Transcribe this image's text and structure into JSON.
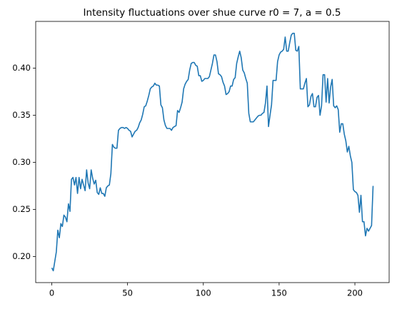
{
  "chart_data": {
    "type": "line",
    "title": "Intensity fluctuations over shue curve r0 = 7, a = 0.5",
    "color": "#1f77b4",
    "x": [
      0,
      1,
      2,
      3,
      4,
      5,
      6,
      7,
      8,
      9,
      10,
      11,
      12,
      13,
      14,
      15,
      16,
      17,
      18,
      19,
      20,
      21,
      22,
      23,
      24,
      25,
      26,
      27,
      28,
      29,
      30,
      31,
      32,
      33,
      34,
      35,
      36,
      37,
      38,
      39,
      40,
      41,
      42,
      43,
      44,
      45,
      46,
      47,
      48,
      49,
      50,
      51,
      52,
      53,
      54,
      55,
      56,
      57,
      58,
      59,
      60,
      61,
      62,
      63,
      64,
      65,
      66,
      67,
      68,
      69,
      70,
      71,
      72,
      73,
      74,
      75,
      76,
      77,
      78,
      79,
      80,
      81,
      82,
      83,
      84,
      85,
      86,
      87,
      88,
      89,
      90,
      91,
      92,
      93,
      94,
      95,
      96,
      97,
      98,
      99,
      100,
      101,
      102,
      103,
      104,
      105,
      106,
      107,
      108,
      109,
      110,
      111,
      112,
      113,
      114,
      115,
      116,
      117,
      118,
      119,
      120,
      121,
      122,
      123,
      124,
      125,
      126,
      127,
      128,
      129,
      130,
      131,
      132,
      133,
      134,
      135,
      136,
      137,
      138,
      139,
      140,
      141,
      142,
      143,
      144,
      145,
      146,
      147,
      148,
      149,
      150,
      151,
      152,
      153,
      154,
      155,
      156,
      157,
      158,
      159,
      160,
      161,
      162,
      163,
      164,
      165,
      166,
      167,
      168,
      169,
      170,
      171,
      172,
      173,
      174,
      175,
      176,
      177,
      178,
      179,
      180,
      181,
      182,
      183,
      184,
      185,
      186,
      187,
      188,
      189,
      190,
      191,
      192,
      193,
      194,
      195,
      196,
      197,
      198,
      199,
      200,
      201,
      202,
      203,
      204,
      205,
      206,
      207,
      208,
      209,
      210,
      211,
      212
    ],
    "values": [
      0.188,
      0.185,
      0.195,
      0.205,
      0.228,
      0.22,
      0.235,
      0.232,
      0.244,
      0.242,
      0.237,
      0.256,
      0.248,
      0.282,
      0.284,
      0.276,
      0.284,
      0.267,
      0.284,
      0.272,
      0.282,
      0.276,
      0.27,
      0.292,
      0.278,
      0.272,
      0.292,
      0.283,
      0.277,
      0.281,
      0.268,
      0.266,
      0.273,
      0.267,
      0.267,
      0.264,
      0.273,
      0.275,
      0.276,
      0.288,
      0.319,
      0.316,
      0.315,
      0.315,
      0.334,
      0.336,
      0.337,
      0.337,
      0.336,
      0.337,
      0.336,
      0.334,
      0.333,
      0.327,
      0.33,
      0.333,
      0.334,
      0.337,
      0.342,
      0.345,
      0.351,
      0.359,
      0.36,
      0.365,
      0.371,
      0.378,
      0.38,
      0.381,
      0.384,
      0.382,
      0.382,
      0.381,
      0.361,
      0.358,
      0.345,
      0.339,
      0.336,
      0.336,
      0.336,
      0.334,
      0.337,
      0.338,
      0.339,
      0.355,
      0.353,
      0.358,
      0.364,
      0.378,
      0.383,
      0.386,
      0.388,
      0.398,
      0.405,
      0.406,
      0.406,
      0.403,
      0.402,
      0.392,
      0.392,
      0.386,
      0.387,
      0.389,
      0.389,
      0.389,
      0.391,
      0.398,
      0.405,
      0.414,
      0.414,
      0.407,
      0.394,
      0.393,
      0.391,
      0.385,
      0.381,
      0.372,
      0.373,
      0.375,
      0.381,
      0.381,
      0.388,
      0.39,
      0.405,
      0.412,
      0.418,
      0.411,
      0.398,
      0.395,
      0.389,
      0.384,
      0.352,
      0.343,
      0.343,
      0.343,
      0.345,
      0.347,
      0.349,
      0.35,
      0.35,
      0.352,
      0.353,
      0.363,
      0.381,
      0.338,
      0.35,
      0.361,
      0.387,
      0.387,
      0.387,
      0.407,
      0.414,
      0.417,
      0.418,
      0.42,
      0.433,
      0.418,
      0.418,
      0.427,
      0.435,
      0.437,
      0.437,
      0.419,
      0.418,
      0.423,
      0.378,
      0.378,
      0.378,
      0.384,
      0.389,
      0.359,
      0.361,
      0.37,
      0.373,
      0.359,
      0.359,
      0.369,
      0.371,
      0.35,
      0.36,
      0.393,
      0.393,
      0.364,
      0.389,
      0.363,
      0.38,
      0.388,
      0.36,
      0.358,
      0.36,
      0.356,
      0.332,
      0.341,
      0.341,
      0.33,
      0.323,
      0.311,
      0.317,
      0.307,
      0.3,
      0.271,
      0.269,
      0.268,
      0.265,
      0.247,
      0.265,
      0.237,
      0.237,
      0.222,
      0.23,
      0.227,
      0.23,
      0.233,
      0.275
    ],
    "xlim": [
      -10.6,
      222.6
    ],
    "ylim": [
      0.1724,
      0.4496
    ],
    "xticks": [
      0,
      50,
      100,
      150,
      200
    ],
    "yticks": [
      {
        "value": 0.2,
        "label": "0.20"
      },
      0.25,
      {
        "value": 0.3,
        "label": "0.30"
      },
      0.35,
      {
        "value": 0.4,
        "label": "0.40"
      }
    ]
  }
}
